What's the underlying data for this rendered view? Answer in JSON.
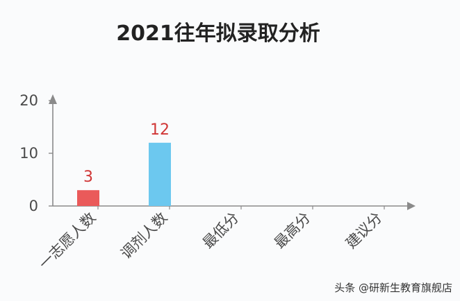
{
  "chart_data": {
    "type": "bar",
    "title": "2021往年拟录取分析",
    "categories": [
      "一志愿人数",
      "调剂人数",
      "最低分",
      "最高分",
      "建议分"
    ],
    "values": [
      3,
      12,
      null,
      null,
      null
    ],
    "data_labels": [
      "3",
      "12",
      "",
      "",
      ""
    ],
    "bar_colors": [
      "#ea5a5a",
      "#6cc8ef",
      "#6cc8ef",
      "#6cc8ef",
      "#6cc8ef"
    ],
    "ylim": [
      0,
      20
    ],
    "yticks": [
      0,
      10,
      20
    ],
    "ytick_labels": [
      "0",
      "10",
      "20"
    ],
    "xlabel": "",
    "ylabel": "",
    "grid": false,
    "axis_color": "#8a8a8a",
    "label_color": "#d03535"
  },
  "watermark": "头条 @研新生教育旗舰店"
}
